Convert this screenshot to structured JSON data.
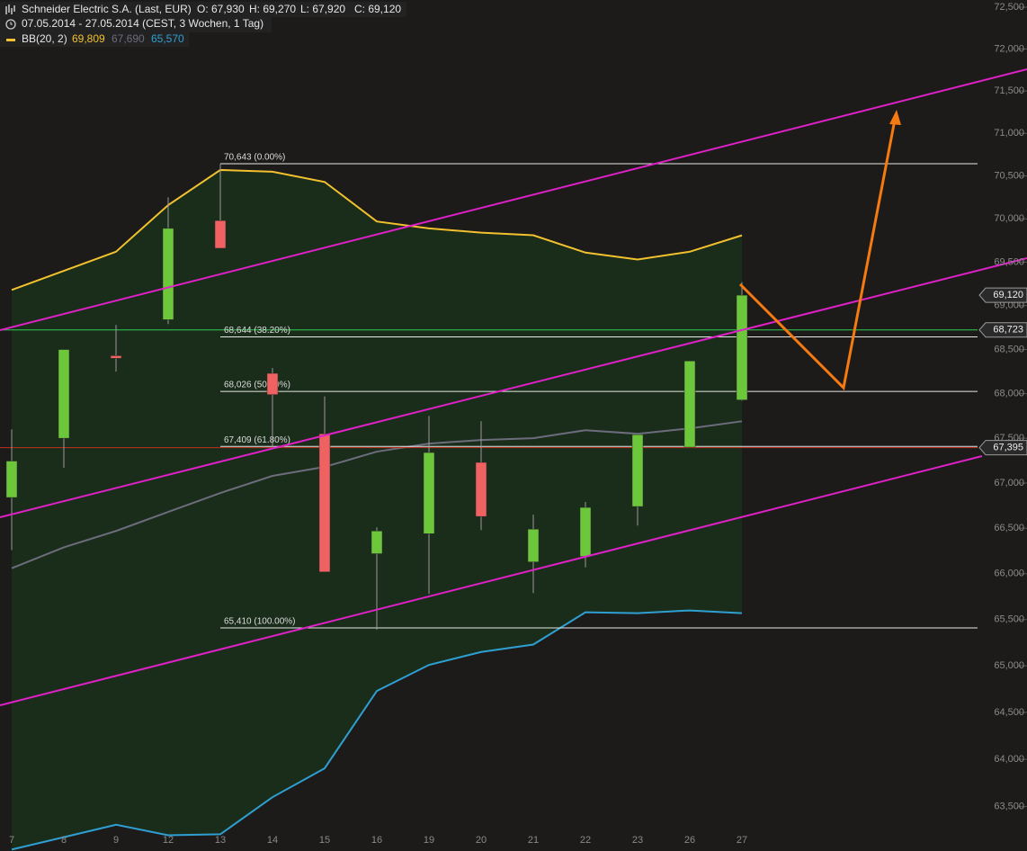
{
  "header": {
    "title": "Schneider Electric S.A. (Last, EUR)",
    "open": "O: 67,930",
    "high": "H: 69,270",
    "low": "L: 67,920",
    "close": "C: 69,120",
    "period": "07.05.2014 - 27.05.2014 (CEST, 3 Wochen, 1 Tag)",
    "indicator": "BB(20, 2)",
    "indicator_values": [
      "69,809",
      "67,690",
      "65,570"
    ]
  },
  "chart_data": {
    "type": "candlestick",
    "categories": [
      "7",
      "8",
      "9",
      "12",
      "13",
      "14",
      "15",
      "16",
      "19",
      "20",
      "21",
      "22",
      "23",
      "26",
      "27"
    ],
    "series": [
      {
        "up_color": "#6cc83a",
        "down_color": "#f06262",
        "open": [
          66840,
          67500,
          68430,
          68840,
          69980,
          68230,
          67550,
          66220,
          66440,
          67230,
          66130,
          66190,
          66740,
          67400,
          67930
        ],
        "high": [
          67600,
          68500,
          68780,
          70250,
          70640,
          68290,
          67970,
          66510,
          67750,
          67690,
          66650,
          66790,
          67540,
          68370,
          69270
        ],
        "low": [
          66260,
          67170,
          68250,
          68790,
          69660,
          67400,
          66020,
          65390,
          65780,
          66480,
          65790,
          66070,
          66530,
          67400,
          67920
        ],
        "close": [
          67245,
          68500,
          68400,
          69890,
          69660,
          67990,
          66020,
          66470,
          67340,
          66630,
          66490,
          66730,
          67540,
          68370,
          69120
        ]
      }
    ],
    "bands": {
      "fill": "#1a2c1a",
      "upper": {
        "color": "#f2c12e",
        "values": [
          69180,
          69400,
          69620,
          70160,
          70570,
          70550,
          70430,
          69970,
          69890,
          69840,
          69810,
          69610,
          69530,
          69620,
          69809
        ]
      },
      "middle": {
        "color": "#6c6c7c",
        "values": [
          66060,
          66290,
          66470,
          66680,
          66890,
          67080,
          67180,
          67350,
          67440,
          67480,
          67500,
          67590,
          67550,
          67610,
          67690
        ]
      },
      "lower": {
        "color": "#2f9fd2",
        "values": [
          63050,
          63180,
          63310,
          63200,
          63210,
          63600,
          63905,
          64730,
          65010,
          65150,
          65230,
          65580,
          65570,
          65600,
          65570
        ]
      }
    },
    "fib_levels": [
      {
        "value": 70643,
        "label": "70,643 (0.00%)"
      },
      {
        "value": 68644,
        "label": "68,644 (38.20%)"
      },
      {
        "value": 68026,
        "label": "68,026 (50.00%)"
      },
      {
        "value": 67409,
        "label": "67,409 (61.80%)"
      },
      {
        "value": 65410,
        "label": "65,410 (100.00%)"
      }
    ],
    "price_tags": [
      {
        "value": 69120,
        "label": "69,120"
      },
      {
        "value": 68723,
        "label": "68,723",
        "color": "#2ecc50"
      },
      {
        "value": 67395,
        "label": "67,395",
        "color": "#c03020"
      }
    ],
    "log_scale": true,
    "ylim": [
      63035,
      72587
    ],
    "yticks": [
      {
        "value": 63500,
        "label": "63,500"
      },
      {
        "value": 64000,
        "label": "64,000"
      },
      {
        "value": 64500,
        "label": "64,500"
      },
      {
        "value": 65000,
        "label": "65,000"
      },
      {
        "value": 65500,
        "label": "65,500"
      },
      {
        "value": 66000,
        "label": "66,000"
      },
      {
        "value": 66500,
        "label": "66,500"
      },
      {
        "value": 67000,
        "label": "67,000"
      },
      {
        "value": 67500,
        "label": "67,500"
      },
      {
        "value": 68000,
        "label": "68,000"
      },
      {
        "value": 68500,
        "label": "68,500"
      },
      {
        "value": 69000,
        "label": "69,000"
      },
      {
        "value": 69500,
        "label": "69,500"
      },
      {
        "value": 70000,
        "label": "70,000"
      },
      {
        "value": 70500,
        "label": "70,500"
      },
      {
        "value": 71000,
        "label": "71,000"
      },
      {
        "value": 71500,
        "label": "71,500"
      },
      {
        "value": 72000,
        "label": "72,000"
      },
      {
        "value": 72500,
        "label": "72,500"
      }
    ]
  }
}
